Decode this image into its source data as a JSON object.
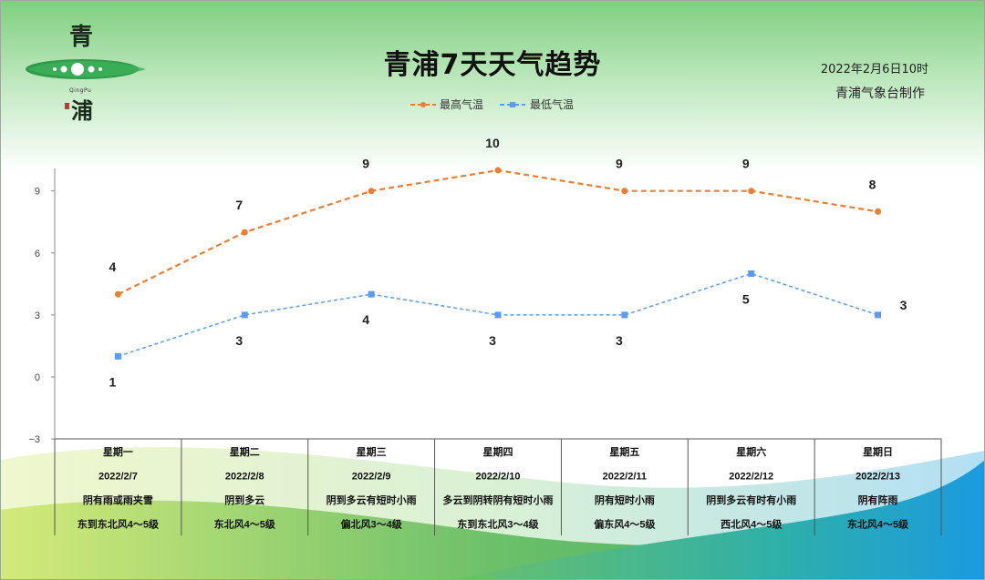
{
  "header": {
    "title": "青浦7天天气趋势",
    "date": "2022年2月6日10时",
    "maker": "青浦气象台制作",
    "logo": {
      "char_top": "青",
      "char_bottom": "浦",
      "pinyin": "QingPu"
    }
  },
  "colors": {
    "high": "#ED7D31",
    "low": "#5B9BF5",
    "header_green": "#7fcf7f",
    "wave_green": "#5cb85c",
    "wave_blue": "#1fa3e0"
  },
  "chart_data": {
    "type": "line",
    "categories": [
      "星期一",
      "星期二",
      "星期三",
      "星期四",
      "星期五",
      "星期六",
      "星期日"
    ],
    "series": [
      {
        "name": "最高气温",
        "values": [
          4,
          7,
          9,
          10,
          9,
          9,
          8
        ]
      },
      {
        "name": "最低气温",
        "values": [
          1,
          3,
          4,
          3,
          3,
          5,
          3
        ]
      }
    ],
    "yticks": [
      -3,
      0,
      3,
      6,
      9
    ],
    "ylim": [
      -3,
      10
    ],
    "legend": "top-center",
    "grid": false
  },
  "forecast_table": {
    "rows": [
      [
        "星期一",
        "星期二",
        "星期三",
        "星期四",
        "星期五",
        "星期六",
        "星期日"
      ],
      [
        "2022/2/7",
        "2022/2/8",
        "2022/2/9",
        "2022/2/10",
        "2022/2/11",
        "2022/2/12",
        "2022/2/13"
      ],
      [
        "阴有雨或雨夹雪",
        "阴到多云",
        "阴到多云有短时小雨",
        "多云到阴转阴有短时小雨",
        "阴有短时小雨",
        "阴到多云有时有小雨",
        "阴有阵雨"
      ],
      [
        "东到东北风4～5级",
        "东北风4～5级",
        "偏北风3～4级",
        "东到东北风3～4级",
        "偏东风4～5级",
        "西北风4～5级",
        "东北风4～5级"
      ]
    ]
  }
}
